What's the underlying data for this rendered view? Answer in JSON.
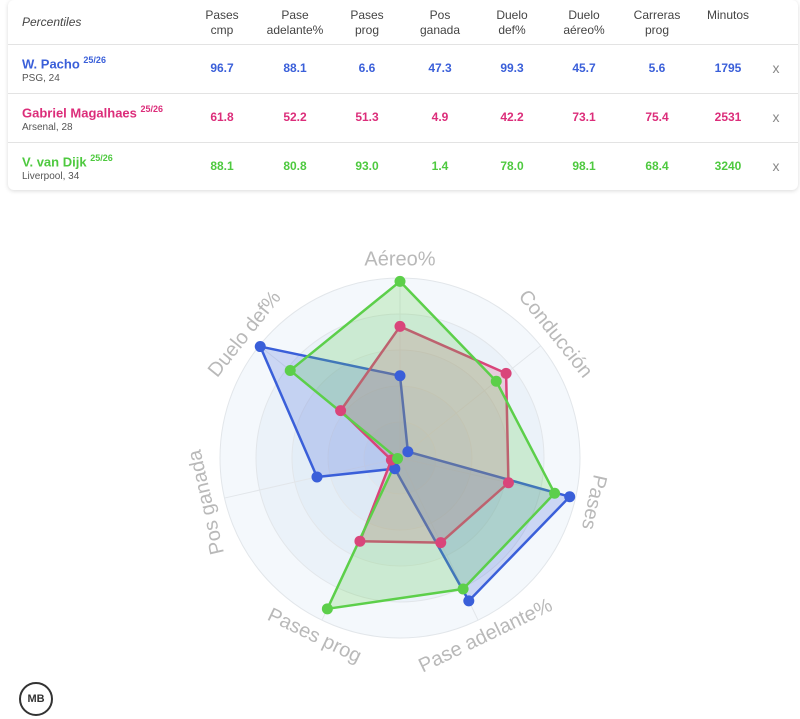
{
  "table": {
    "header": {
      "label": "Percentiles",
      "columns": [
        [
          "Pases",
          "cmp"
        ],
        [
          "Pase",
          "adelante%"
        ],
        [
          "Pases",
          "prog"
        ],
        [
          "Pos",
          "ganada"
        ],
        [
          "Duelo",
          "def%"
        ],
        [
          "Duelo",
          "aéreo%"
        ],
        [
          "Carreras",
          "prog"
        ],
        [
          "Minutos"
        ]
      ]
    },
    "rows": [
      {
        "player": "W. Pacho",
        "season": "25/26",
        "club": "PSG, 24",
        "color": "#3a5fd9",
        "cells": [
          "96.7",
          "88.1",
          "6.6",
          "47.3",
          "99.3",
          "45.7",
          "5.6",
          "1795"
        ],
        "remove": "x"
      },
      {
        "player": "Gabriel Magalhaes",
        "season": "25/26",
        "club": "Arsenal, 28",
        "color": "#dc2d7a",
        "cells": [
          "61.8",
          "52.2",
          "51.3",
          "4.9",
          "42.2",
          "73.1",
          "75.4",
          "2531"
        ],
        "remove": "x"
      },
      {
        "player": "V. van Dijk",
        "season": "25/26",
        "club": "Liverpool, 34",
        "color": "#4ec93f",
        "cells": [
          "88.1",
          "80.8",
          "93.0",
          "1.4",
          "78.0",
          "98.1",
          "68.4",
          "3240"
        ],
        "remove": "x"
      }
    ]
  },
  "chart_data": {
    "type": "radar",
    "categories": [
      "Aéreo%",
      "Conducción",
      "Pases",
      "Pase adelante%",
      "Pases prog",
      "Pos ganada",
      "Duelo def%"
    ],
    "ylim": [
      0,
      100
    ],
    "yticks": [
      20,
      40,
      60,
      80,
      100
    ],
    "series": [
      {
        "name": "W. Pacho",
        "color": "#3a5fd9",
        "values": [
          45.7,
          5.6,
          96.7,
          88.1,
          6.6,
          47.3,
          99.3
        ]
      },
      {
        "name": "Gabriel Magalhaes",
        "color": "#d9457a",
        "values": [
          73.1,
          75.4,
          61.8,
          52.2,
          51.3,
          4.9,
          42.2
        ]
      },
      {
        "name": "V. van Dijk",
        "color": "#5ccf4a",
        "values": [
          98.1,
          68.4,
          88.1,
          80.8,
          93.0,
          1.4,
          78.0
        ]
      }
    ]
  },
  "logo": "MB"
}
